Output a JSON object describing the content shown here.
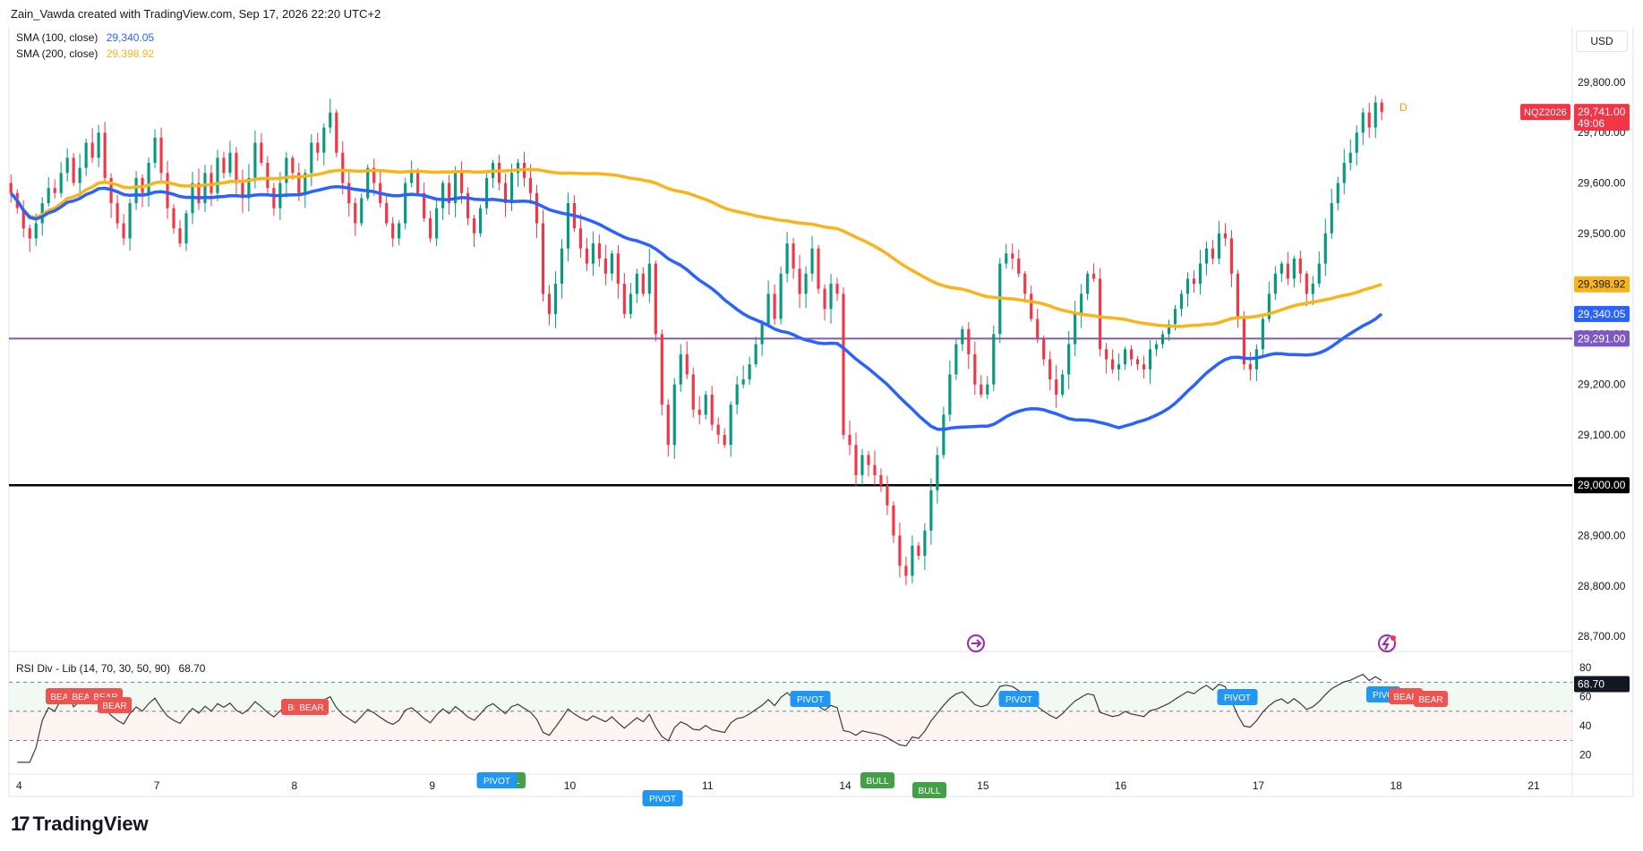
{
  "header": {
    "created_by": "Zain_Vawda created with TradingView.com, Sep 17, 2026 22:20 UTC+2"
  },
  "legend": {
    "sma100_label": "SMA (100, close)",
    "sma100_value": "29,340.05",
    "sma200_label": "SMA (200, close)",
    "sma200_value": "29,398.92"
  },
  "currency": "USD",
  "colors": {
    "up": "#089981",
    "down": "#f23645",
    "sma100": "#2962ff",
    "sma200": "#f7b51b",
    "hline_purple": "#7e57c2",
    "hline_black": "#000000",
    "symbol_tag": "#f23645",
    "bull": "#43a047",
    "bear": "#ef5350",
    "pivot": "#2196f3"
  },
  "price_tags": {
    "symbol": "NQZ2026",
    "last": "29,741.00",
    "countdown": "49:06",
    "sma200": "29,398.92",
    "sma100": "29,340.05",
    "purple_line": "29,291.00",
    "black_line": "29,000.00",
    "rsi": "68.70"
  },
  "marker_d": "D",
  "rsi_legend": {
    "label": "RSI Div - Lib (14, 70, 30, 50, 90)",
    "value": "68.70"
  },
  "footer": {
    "brand": "TradingView"
  },
  "chart_data": {
    "type": "candlestick",
    "symbol": "NQZ2026",
    "y_ticks": [
      29800,
      29700,
      29600,
      29500,
      29400,
      29300,
      29200,
      29100,
      29000,
      28900,
      28800,
      28700
    ],
    "y_tick_labels": [
      "29,800.00",
      "29,700.00",
      "29,600.00",
      "29,500.00",
      "29,400.00",
      "29,300.00",
      "29,200.00",
      "29,100.00",
      "29,000.00",
      "28,900.00",
      "28,800.00",
      "28,700.00"
    ],
    "ylim": [
      28670,
      29910
    ],
    "x_labels": [
      "4",
      "7",
      "8",
      "9",
      "10",
      "11",
      "14",
      "15",
      "16",
      "17",
      "18",
      "21"
    ],
    "x_label_bars": [
      2,
      36,
      70,
      104,
      138,
      172,
      206,
      240,
      274,
      308,
      342,
      376
    ],
    "bars_total": 386,
    "horizontal_lines": [
      29291,
      29000
    ],
    "closes": [
      29580,
      29550,
      29510,
      29490,
      29520,
      29560,
      29590,
      29580,
      29620,
      29650,
      29600,
      29630,
      29680,
      29650,
      29700,
      29610,
      29560,
      29520,
      29490,
      29560,
      29610,
      29580,
      29640,
      29690,
      29620,
      29550,
      29510,
      29480,
      29540,
      29600,
      29560,
      29620,
      29580,
      29650,
      29620,
      29660,
      29600,
      29570,
      29610,
      29680,
      29640,
      29590,
      29550,
      29600,
      29650,
      29620,
      29580,
      29620,
      29680,
      29660,
      29710,
      29740,
      29660,
      29600,
      29560,
      29520,
      29570,
      29630,
      29600,
      29560,
      29520,
      29490,
      29520,
      29600,
      29620,
      29580,
      29530,
      29490,
      29550,
      29600,
      29560,
      29620,
      29580,
      29530,
      29500,
      29550,
      29610,
      29640,
      29600,
      29560,
      29620,
      29640,
      29610,
      29580,
      29520,
      29380,
      29340,
      29400,
      29470,
      29560,
      29510,
      29470,
      29440,
      29480,
      29450,
      29420,
      29460,
      29400,
      29340,
      29380,
      29420,
      29380,
      29440,
      29300,
      29160,
      29080,
      29200,
      29260,
      29220,
      29150,
      29140,
      29180,
      29120,
      29100,
      29080,
      29160,
      29200,
      29210,
      29240,
      29280,
      29320,
      29380,
      29330,
      29420,
      29480,
      29430,
      29380,
      29420,
      29470,
      29390,
      29350,
      29400,
      29380,
      29100,
      29080,
      29020,
      29060,
      29040,
      29020,
      29000,
      28960,
      28900,
      28840,
      28820,
      28880,
      28860,
      28910,
      28990,
      29060,
      29140,
      29220,
      29280,
      29310,
      29260,
      29200,
      29180,
      29200,
      29300,
      29440,
      29460,
      29450,
      29420,
      29380,
      29330,
      29290,
      29250,
      29210,
      29180,
      29220,
      29280,
      29340,
      29380,
      29420,
      29410,
      29270,
      29250,
      29230,
      29240,
      29270,
      29250,
      29240,
      29230,
      29270,
      29280,
      29300,
      29320,
      29350,
      29380,
      29410,
      29400,
      29440,
      29470,
      29450,
      29500,
      29490,
      29420,
      29330,
      29240,
      29230,
      29270,
      29330,
      29380,
      29420,
      29440,
      29410,
      29450,
      29420,
      29380,
      29400,
      29440,
      29500,
      29560,
      29600,
      29640,
      29660,
      29700,
      29740,
      29710,
      29760,
      29741
    ],
    "sma100": {
      "name": "SMA (100, close)",
      "last": 29340.05
    },
    "sma200": {
      "name": "SMA (200, close)",
      "last": 29398.92
    },
    "rsi": {
      "label": "RSI Div - Lib (14, 70, 30, 50, 90)",
      "last": 68.7,
      "y_ticks": [
        80,
        60,
        40,
        20
      ],
      "levels": [
        70,
        30,
        50
      ],
      "signals": [
        {
          "text": "BEAR",
          "kind": "bear"
        },
        {
          "text": "BEAR",
          "kind": "bear"
        },
        {
          "text": "BEAR",
          "kind": "bear"
        },
        {
          "text": "BEAR",
          "kind": "bear"
        },
        {
          "text": "BI",
          "kind": "bear"
        },
        {
          "text": "BEAR",
          "kind": "bear"
        },
        {
          "text": "PIVOT",
          "kind": "pivot"
        },
        {
          "text": "BULL",
          "kind": "bull"
        },
        {
          "text": "PIVOT",
          "kind": "pivot"
        },
        {
          "text": "PIVOT",
          "kind": "pivot"
        },
        {
          "text": "BULL",
          "kind": "bull"
        },
        {
          "text": "BULL",
          "kind": "bull"
        },
        {
          "text": "PIVOT",
          "kind": "pivot"
        },
        {
          "text": "PIVOT",
          "kind": "pivot"
        },
        {
          "text": "PIVO",
          "kind": "pivot"
        },
        {
          "text": "BEAR",
          "kind": "bear"
        },
        {
          "text": "BEAR",
          "kind": "bear"
        }
      ]
    }
  }
}
